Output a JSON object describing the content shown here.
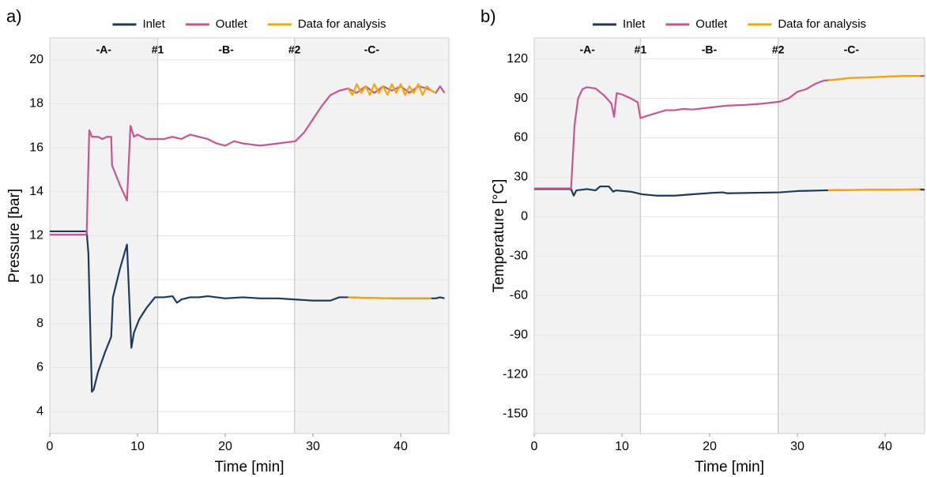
{
  "chart_data": [
    {
      "type": "line",
      "label": "a)",
      "xlabel": "Time [min]",
      "ylabel": "Pressure [bar]",
      "xlim": [
        0,
        45.5
      ],
      "xticks": [
        0,
        10,
        20,
        30,
        40
      ],
      "ylim": [
        3,
        21
      ],
      "yticks": [
        4,
        6,
        8,
        10,
        12,
        14,
        16,
        18,
        20
      ],
      "grid": true,
      "legend": "top",
      "regions": [
        {
          "label": "-A-",
          "from": 0,
          "to": 12.3,
          "shaded": true
        },
        {
          "label": "-B-",
          "from": 12.3,
          "to": 27.9,
          "shaded": false
        },
        {
          "label": "-C-",
          "from": 27.9,
          "to": 45.5,
          "shaded": true
        }
      ],
      "markers": [
        {
          "label": "#1",
          "x": 12.3
        },
        {
          "label": "#2",
          "x": 27.9
        }
      ],
      "series": [
        {
          "name": "Inlet",
          "color": "#1b3a5c",
          "x": [
            0,
            4.2,
            4.4,
            4.8,
            5.0,
            5.5,
            6.3,
            7.0,
            7.2,
            8.0,
            8.8,
            9.3,
            9.6,
            10.2,
            11,
            12,
            13,
            14,
            14.5,
            15,
            16,
            17,
            18,
            20,
            22,
            24,
            26,
            28,
            30,
            32,
            33,
            34,
            36,
            38,
            40,
            42,
            44,
            44.5,
            45
          ],
          "values": [
            12.2,
            12.2,
            11.2,
            4.9,
            5.0,
            5.8,
            6.7,
            7.4,
            9.2,
            10.5,
            11.6,
            6.9,
            7.6,
            8.2,
            8.7,
            9.2,
            9.2,
            9.25,
            8.95,
            9.1,
            9.2,
            9.2,
            9.25,
            9.15,
            9.2,
            9.15,
            9.15,
            9.1,
            9.05,
            9.05,
            9.2,
            9.2,
            9.17,
            9.16,
            9.15,
            9.15,
            9.15,
            9.2,
            9.15
          ]
        },
        {
          "name": "Outlet",
          "color": "#c8558f",
          "x": [
            0,
            4.2,
            4.5,
            4.8,
            5.5,
            6,
            6.5,
            7,
            7.1,
            8,
            8.8,
            9.2,
            9.6,
            10,
            11,
            12,
            13,
            14,
            15,
            16,
            17,
            18,
            19,
            20,
            21,
            22,
            24,
            26,
            28,
            29,
            30,
            31,
            32,
            33,
            34,
            35,
            36,
            37,
            38,
            39,
            40,
            41,
            42,
            43,
            44,
            44.5,
            45
          ],
          "values": [
            12.05,
            12.05,
            16.8,
            16.5,
            16.5,
            16.4,
            16.5,
            16.5,
            15.2,
            14.3,
            13.6,
            17.0,
            16.5,
            16.6,
            16.4,
            16.4,
            16.4,
            16.5,
            16.4,
            16.6,
            16.5,
            16.4,
            16.2,
            16.1,
            16.3,
            16.2,
            16.1,
            16.2,
            16.3,
            16.7,
            17.3,
            17.9,
            18.4,
            18.6,
            18.7,
            18.5,
            18.8,
            18.5,
            18.8,
            18.6,
            18.8,
            18.5,
            18.8,
            18.7,
            18.5,
            18.8,
            18.5
          ]
        },
        {
          "name": "Data for analysis",
          "color": "#f5a800",
          "x": [
            34,
            34.5,
            35,
            35.5,
            36,
            36.5,
            37,
            37.5,
            38,
            38.5,
            39,
            39.5,
            40,
            40.5,
            41,
            41.5,
            42,
            42.5,
            43,
            43.5,
            44,
            null,
            34,
            36,
            38,
            40,
            42,
            43.5
          ],
          "values": [
            18.7,
            18.4,
            18.9,
            18.5,
            18.8,
            18.4,
            18.9,
            18.5,
            18.8,
            18.4,
            18.9,
            18.5,
            18.9,
            18.4,
            18.8,
            18.5,
            18.9,
            18.4,
            18.8,
            18.6,
            18.5,
            null,
            9.2,
            9.17,
            9.16,
            9.15,
            9.15,
            9.15
          ]
        }
      ]
    },
    {
      "type": "line",
      "label": "b)",
      "xlabel": "Time [min]",
      "ylabel": "Temperature [°C]",
      "xlim": [
        0,
        44.5
      ],
      "xticks": [
        0,
        10,
        20,
        30,
        40
      ],
      "ylim": [
        -165,
        136
      ],
      "yticks": [
        -150,
        -120,
        -90,
        -60,
        -30,
        0,
        30,
        60,
        90,
        120
      ],
      "grid": true,
      "legend": "top",
      "regions": [
        {
          "label": "-A-",
          "from": 0,
          "to": 12.1,
          "shaded": true
        },
        {
          "label": "-B-",
          "from": 12.1,
          "to": 27.8,
          "shaded": false
        },
        {
          "label": "-C-",
          "from": 27.8,
          "to": 44.5,
          "shaded": true
        }
      ],
      "markers": [
        {
          "label": "#1",
          "x": 12.1
        },
        {
          "label": "#2",
          "x": 27.8
        }
      ],
      "series": [
        {
          "name": "Inlet",
          "color": "#1b3a5c",
          "x": [
            0,
            4.2,
            4.5,
            4.8,
            6,
            7,
            7.5,
            8.5,
            9,
            9.3,
            11,
            12.3,
            14,
            16,
            20,
            21.5,
            22,
            28,
            30,
            33,
            36,
            40,
            44,
            44.5
          ],
          "values": [
            21,
            21,
            16,
            20,
            21,
            20,
            23,
            23,
            19,
            20,
            19,
            17,
            16,
            16,
            18,
            18.5,
            17.8,
            18.5,
            19.5,
            20,
            20.3,
            20.5,
            20.7,
            20.5
          ]
        },
        {
          "name": "Outlet",
          "color": "#c8558f",
          "x": [
            0,
            4.2,
            4.6,
            5,
            5.5,
            6,
            7,
            8,
            8.8,
            9.1,
            9.4,
            10,
            11,
            11.8,
            12.1,
            13,
            14,
            15,
            16,
            17,
            18,
            20,
            22,
            24,
            26,
            28,
            29,
            30,
            31,
            32,
            33,
            34,
            36,
            38,
            40,
            42,
            44,
            44.5
          ],
          "values": [
            21.5,
            21.5,
            70,
            90,
            97,
            98.5,
            97.5,
            92,
            86,
            76,
            94,
            93,
            90,
            87,
            75,
            77,
            79,
            81,
            81,
            82,
            81.5,
            83,
            84.5,
            85,
            86,
            87.5,
            90,
            95,
            97,
            101,
            103.5,
            104,
            105.5,
            106,
            106.5,
            107,
            107,
            107
          ]
        },
        {
          "name": "Data for analysis",
          "color": "#f5a800",
          "x": [
            33.5,
            34,
            36,
            38,
            40,
            42,
            44,
            null,
            33.5,
            36,
            40,
            44
          ],
          "values": [
            104,
            104,
            105.5,
            106,
            106.5,
            107,
            107,
            null,
            20,
            20.3,
            20.5,
            20.7
          ]
        }
      ]
    }
  ]
}
